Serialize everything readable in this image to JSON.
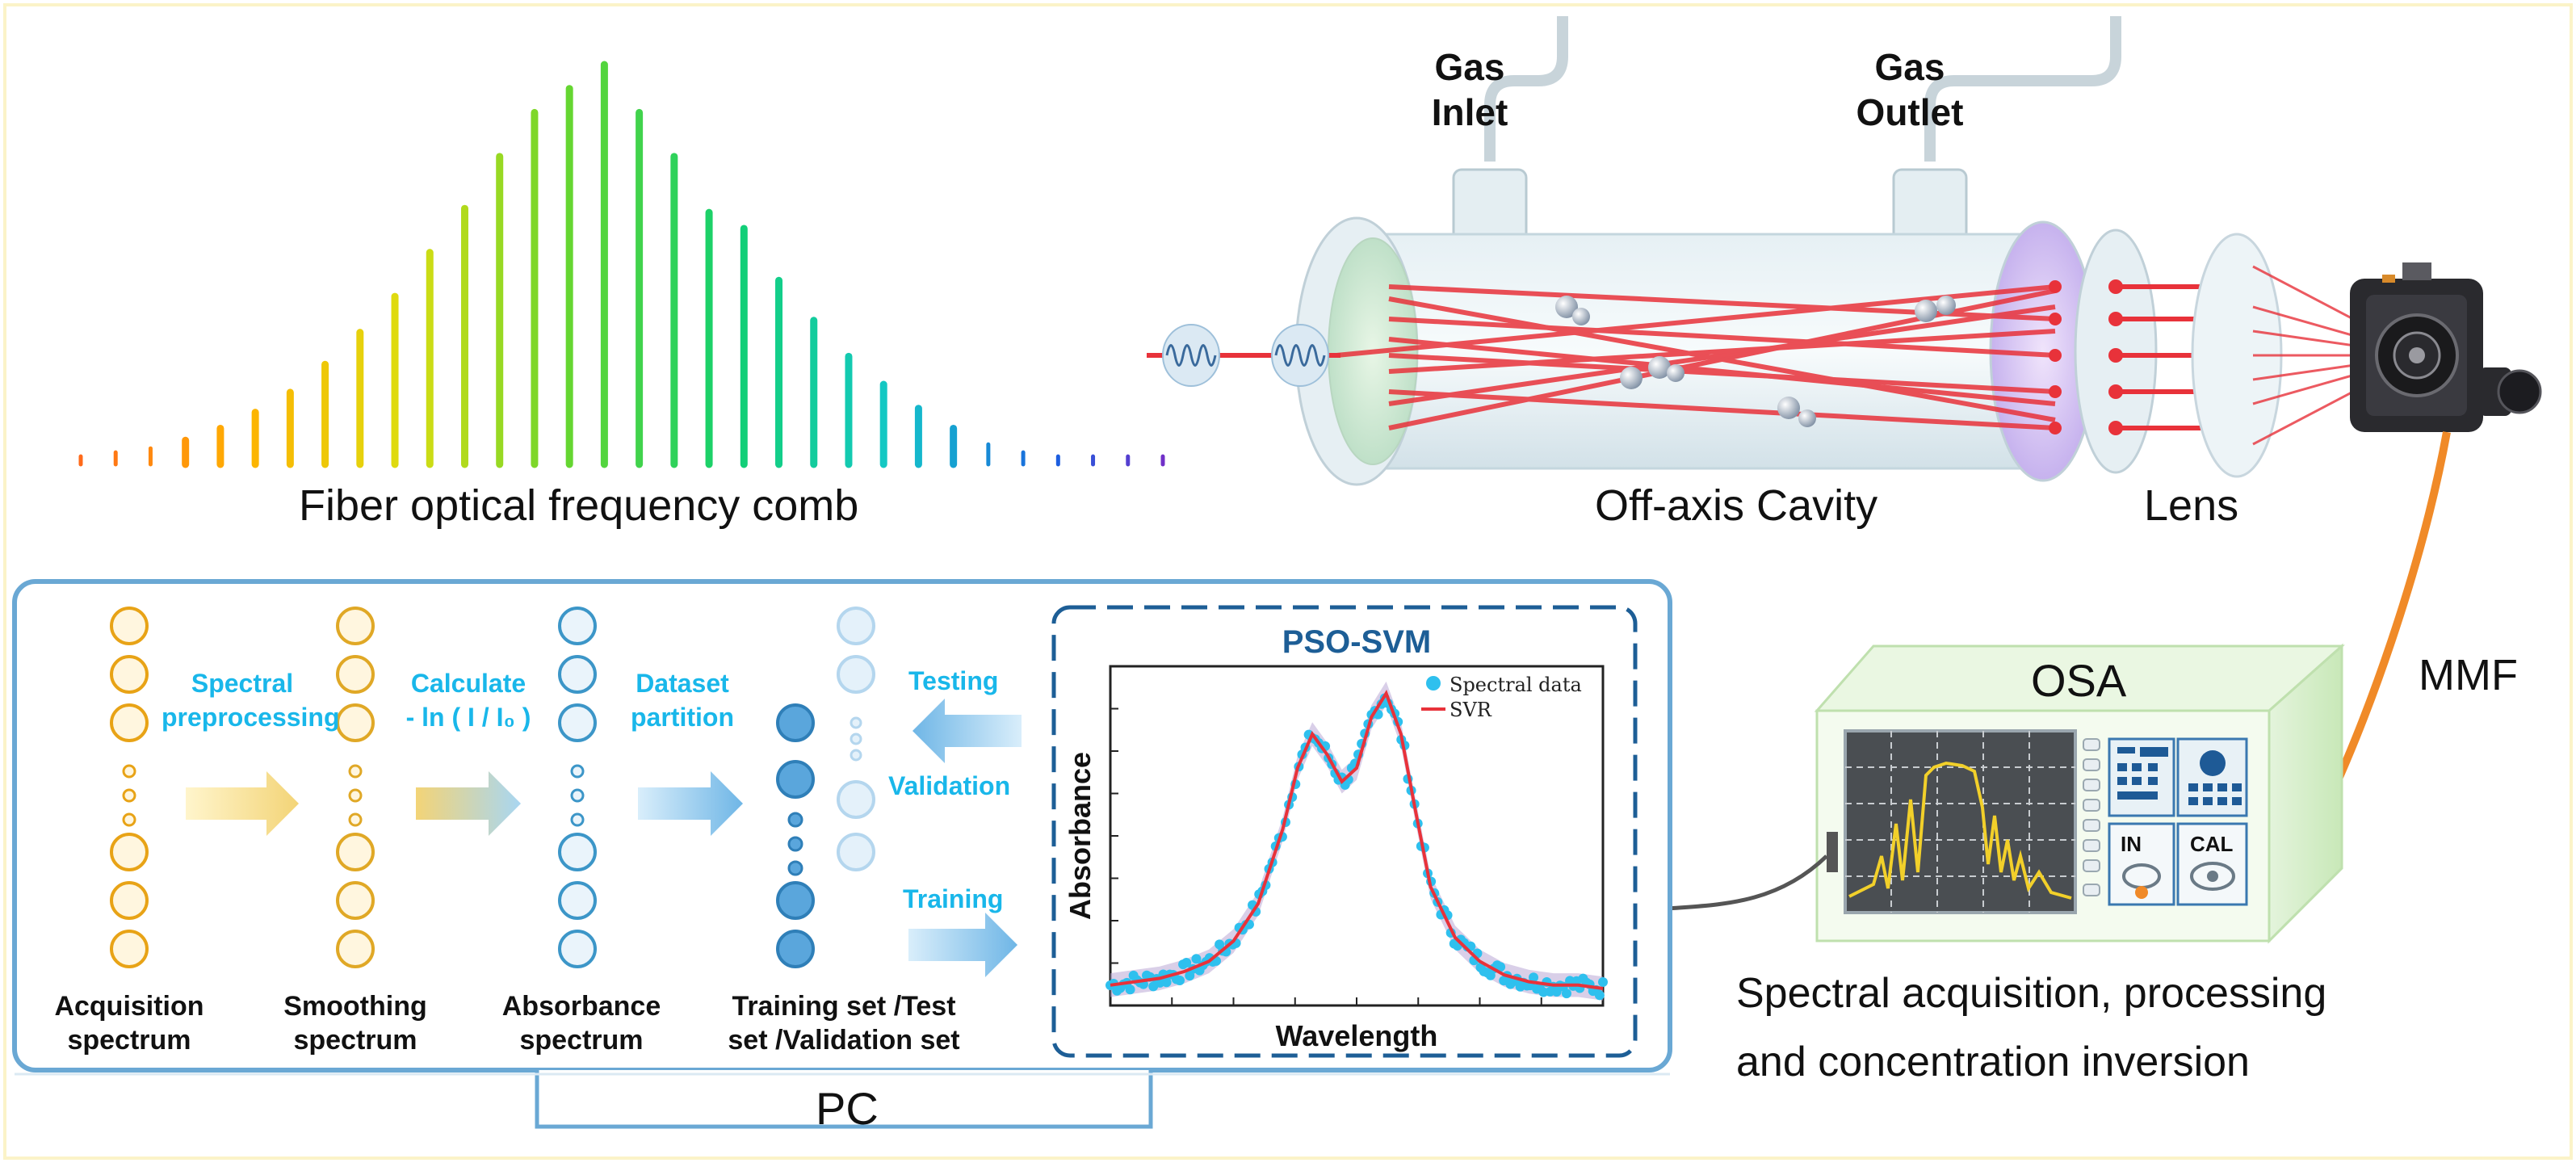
{
  "comb": {
    "title": "Fiber optical frequency comb",
    "line_heights": [
      0.02,
      0.03,
      0.04,
      0.06,
      0.09,
      0.13,
      0.18,
      0.25,
      0.33,
      0.42,
      0.53,
      0.64,
      0.77,
      0.88,
      0.94,
      1.0,
      0.88,
      0.77,
      0.63,
      0.59,
      0.46,
      0.36,
      0.27,
      0.2,
      0.14,
      0.09,
      0.05,
      0.03,
      0.02,
      0.02,
      0.02,
      0.02
    ]
  },
  "gas": {
    "inlet": [
      "Gas",
      "Inlet"
    ],
    "outlet": [
      "Gas",
      "Outlet"
    ]
  },
  "optics": {
    "cavity_label": "Off-axis Cavity",
    "lens_label": "Lens",
    "fiber_label": "MMF"
  },
  "osa": {
    "title": "OSA",
    "in_label": "IN",
    "cal_label": "CAL",
    "caption_line1": "Spectral acquisition, processing",
    "caption_line2": "and concentration inversion"
  },
  "pc": {
    "label": "PC",
    "columns": [
      {
        "line1": "Acquisition",
        "line2": "spectrum"
      },
      {
        "line1": "Smoothing",
        "line2": "spectrum"
      },
      {
        "line1": "Absorbance",
        "line2": "spectrum"
      },
      {
        "line1": "Training set /Test",
        "line2": "set /Validation set"
      }
    ],
    "steps": {
      "spectral_1": "Spectral",
      "spectral_2": "preprocessing",
      "calc_1": "Calculate",
      "calc_2": "- ln ( I / I₀ )",
      "dataset_1": "Dataset",
      "dataset_2": "partition",
      "testing": "Testing",
      "validation": "Validation",
      "training": "Training"
    }
  },
  "colors": {
    "acq": "#e8a316",
    "smooth": "#e0a826",
    "absorb": "#3c96c8",
    "panel_border": "#6aa8d4",
    "svm_border": "#1d5e96",
    "cyan": "#19b7ea",
    "laser": "#e82f38",
    "fiber": "#f08a28"
  },
  "chart_data": {
    "type": "scatter",
    "title": "PSO-SVM",
    "xlabel": "Wavelength",
    "ylabel": "Absorbance",
    "legend": [
      {
        "name": "Spectral data",
        "marker": "circle"
      },
      {
        "name": "SVR",
        "marker": "line"
      }
    ],
    "legend_position": "top-right",
    "x_range": [
      0,
      1
    ],
    "y_range": [
      0,
      1
    ],
    "series": [
      {
        "name": "SVR",
        "x": [
          0.0,
          0.05,
          0.1,
          0.15,
          0.2,
          0.25,
          0.3,
          0.35,
          0.38,
          0.41,
          0.44,
          0.47,
          0.5,
          0.53,
          0.56,
          0.59,
          0.62,
          0.65,
          0.7,
          0.75,
          0.8,
          0.85,
          0.9,
          0.95,
          1.0
        ],
        "y": [
          0.06,
          0.07,
          0.08,
          0.1,
          0.13,
          0.19,
          0.3,
          0.52,
          0.7,
          0.8,
          0.74,
          0.66,
          0.7,
          0.85,
          0.92,
          0.8,
          0.57,
          0.35,
          0.2,
          0.13,
          0.09,
          0.07,
          0.06,
          0.06,
          0.05
        ]
      }
    ]
  }
}
